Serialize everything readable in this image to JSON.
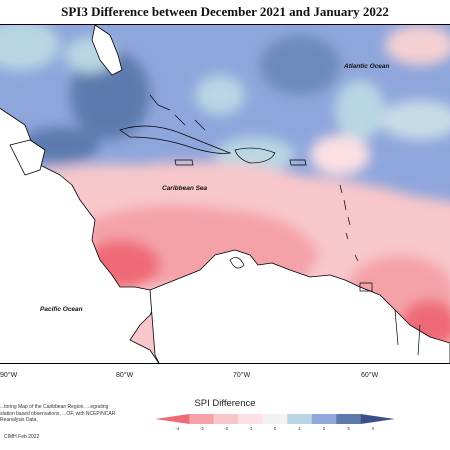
{
  "title": "SPI3 Difference between December 2021 and January 2022",
  "map_labels": {
    "atlantic": "Atlantic Ocean",
    "caribbean": "Caribbean Sea",
    "pacific": "Pacific Ocean"
  },
  "longitude_ticks": [
    "90°W",
    "80°W",
    "70°W",
    "60°W"
  ],
  "legend": {
    "title": "SPI Difference",
    "ticks": [
      "-4",
      "-3",
      "-2",
      "-1",
      "0",
      "1",
      "2",
      "3",
      "4"
    ],
    "colors": [
      "#ef6a78",
      "#f4a2a8",
      "#f8c7cb",
      "#fce0e3",
      "#f2f2f2",
      "#b9d6e4",
      "#8fa6dc",
      "#5d7aae",
      "#3d4f8a"
    ]
  },
  "credits": "...toring Map of the Caribbean Region. ...egrating station based observations, ...OF, with NCEP/NCAR Reanalysis Data.",
  "footer": "CIMH Feb 2022"
}
